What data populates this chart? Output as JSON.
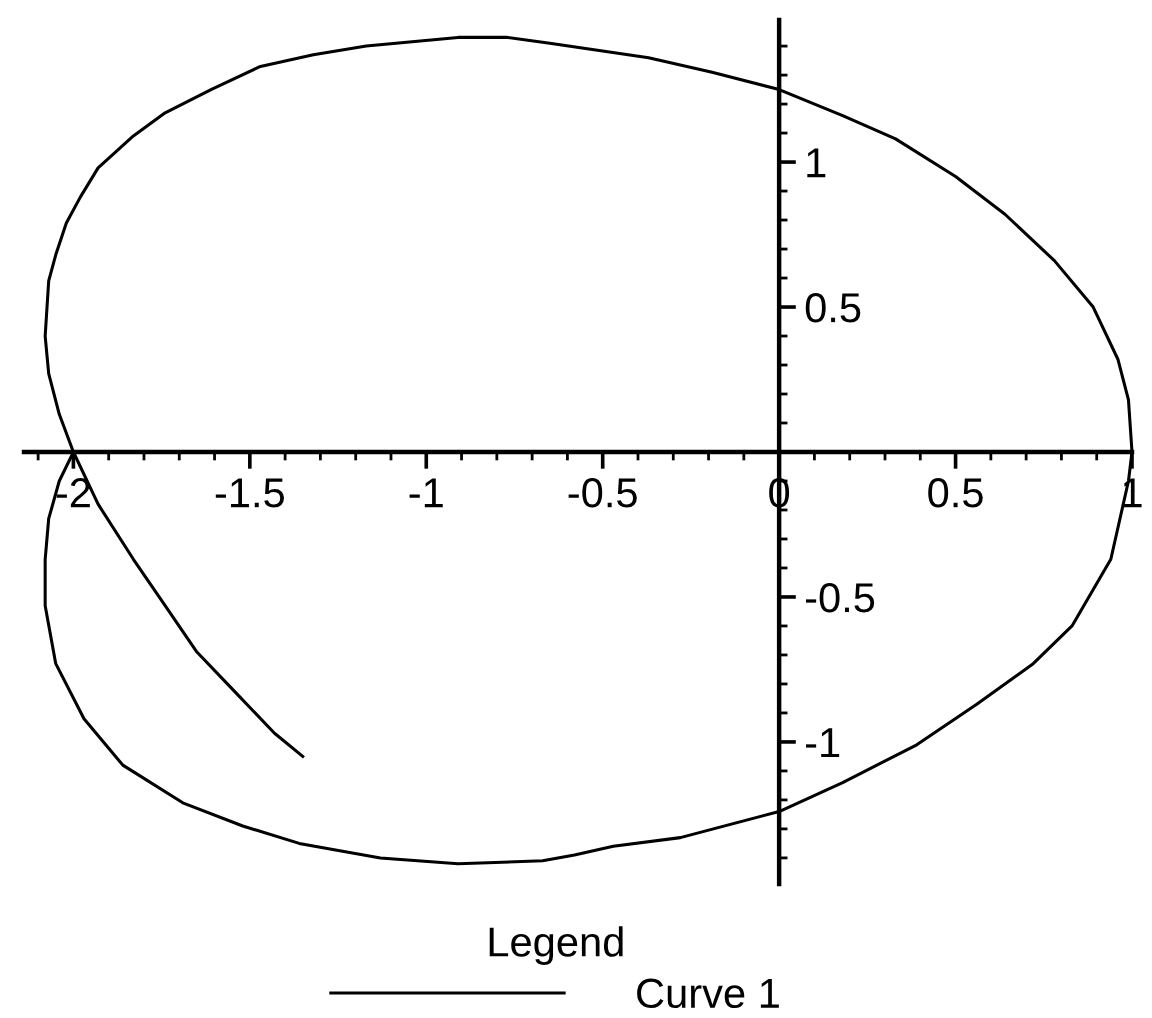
{
  "chart_data": {
    "type": "line",
    "xlim": [
      -2.14,
      1.0
    ],
    "ylim": [
      -1.49,
      1.49
    ],
    "xticks": [
      {
        "value": -2.1,
        "label": null
      },
      -2,
      {
        "value": -1.9,
        "label": null
      },
      {
        "value": -1.8,
        "label": null
      },
      {
        "value": -1.7,
        "label": null
      },
      {
        "value": -1.6,
        "label": null
      },
      -1.5,
      {
        "value": -1.4,
        "label": null
      },
      {
        "value": -1.3,
        "label": null
      },
      {
        "value": -1.2,
        "label": null
      },
      {
        "value": -1.1,
        "label": null
      },
      -1,
      {
        "value": -0.9,
        "label": null
      },
      {
        "value": -0.8,
        "label": null
      },
      {
        "value": -0.7,
        "label": null
      },
      {
        "value": -0.6,
        "label": null
      },
      -0.5,
      {
        "value": -0.4,
        "label": null
      },
      {
        "value": -0.3,
        "label": null
      },
      {
        "value": -0.2,
        "label": null
      },
      {
        "value": -0.1,
        "label": null
      },
      0,
      {
        "value": 0.1,
        "label": null
      },
      {
        "value": 0.2,
        "label": null
      },
      {
        "value": 0.3,
        "label": null
      },
      {
        "value": 0.4,
        "label": null
      },
      0.5,
      {
        "value": 0.6,
        "label": null
      },
      {
        "value": 0.7,
        "label": null
      },
      {
        "value": 0.8,
        "label": null
      },
      {
        "value": 0.9,
        "label": null
      },
      1
    ],
    "yticks": [
      {
        "value": -1.4,
        "label": null
      },
      {
        "value": -1.3,
        "label": null
      },
      {
        "value": -1.2,
        "label": null
      },
      {
        "value": -1.1,
        "label": null
      },
      -1,
      {
        "value": -0.9,
        "label": null
      },
      {
        "value": -0.8,
        "label": null
      },
      {
        "value": -0.7,
        "label": null
      },
      {
        "value": -0.6,
        "label": null
      },
      -0.5,
      {
        "value": -0.4,
        "label": null
      },
      {
        "value": -0.3,
        "label": null
      },
      {
        "value": -0.2,
        "label": null
      },
      {
        "value": -0.1,
        "label": null
      },
      {
        "value": 0.1,
        "label": null
      },
      {
        "value": 0.2,
        "label": null
      },
      {
        "value": 0.3,
        "label": null
      },
      {
        "value": 0.4,
        "label": null
      },
      0.5,
      {
        "value": 0.6,
        "label": null
      },
      {
        "value": 0.7,
        "label": null
      },
      {
        "value": 0.8,
        "label": null
      },
      {
        "value": 0.9,
        "label": null
      },
      1,
      {
        "value": 1.1,
        "label": null
      },
      {
        "value": 1.2,
        "label": null
      },
      {
        "value": 1.3,
        "label": null
      },
      {
        "value": 1.4,
        "label": null
      }
    ],
    "legend": "bottom",
    "legend_title": "Legend",
    "series": [
      {
        "name": "Curve 1",
        "color": "#000000",
        "x": [
          -2.0,
          -2.04,
          -2.07,
          -2.08,
          -2.08,
          -2.05,
          -1.97,
          -1.86,
          -1.69,
          -1.52,
          -1.36,
          -1.13,
          -0.91,
          -0.67,
          -0.58,
          -0.47,
          -0.28,
          0.0,
          0.18,
          0.39,
          0.56,
          0.72,
          0.83,
          0.94,
          0.99,
          1.0,
          0.99,
          0.96,
          0.89,
          0.78,
          0.64,
          0.5,
          0.33,
          0.18,
          0.0,
          -0.19,
          -0.37,
          -0.65,
          -0.77,
          -0.91,
          -1.17,
          -1.32,
          -1.47,
          -1.61,
          -1.74,
          -1.83,
          -1.93,
          -1.98,
          -2.02,
          -2.05,
          -2.07,
          -2.08,
          -2.07,
          -2.04,
          -2.0,
          -1.93,
          -1.83,
          -1.74,
          -1.65,
          -1.54,
          -1.43,
          -1.35
        ],
        "values": [
          0.0,
          -0.1,
          -0.23,
          -0.37,
          -0.53,
          -0.73,
          -0.92,
          -1.08,
          -1.21,
          -1.29,
          -1.35,
          -1.4,
          -1.42,
          -1.41,
          -1.39,
          -1.36,
          -1.33,
          -1.24,
          -1.14,
          -1.01,
          -0.87,
          -0.73,
          -0.6,
          -0.37,
          -0.1,
          0.0,
          0.18,
          0.32,
          0.5,
          0.66,
          0.82,
          0.95,
          1.08,
          1.16,
          1.25,
          1.31,
          1.36,
          1.41,
          1.43,
          1.43,
          1.4,
          1.37,
          1.33,
          1.25,
          1.17,
          1.09,
          0.98,
          0.88,
          0.79,
          0.68,
          0.59,
          0.4,
          0.27,
          0.13,
          0.0,
          -0.18,
          -0.37,
          -0.53,
          -0.69,
          -0.83,
          -0.97,
          -1.05
        ]
      }
    ]
  }
}
